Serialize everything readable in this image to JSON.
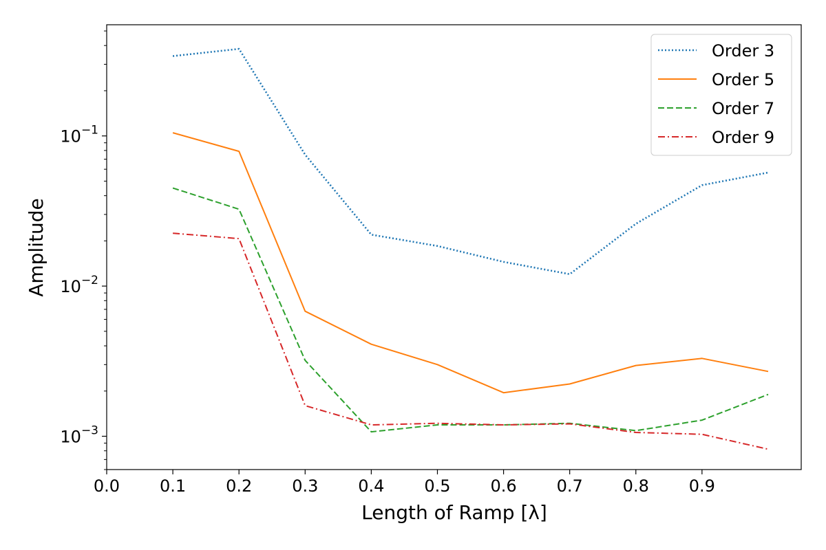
{
  "chart_data": {
    "type": "line",
    "title": "",
    "xlabel": "Length of Ramp [λ]",
    "ylabel": "Amplitude",
    "xlim": [
      0.0,
      1.05
    ],
    "ylim": [
      0.0006,
      0.55
    ],
    "yscale": "log",
    "grid": false,
    "legend_position": "top-right",
    "x_ticks": [
      "0.0",
      "0.1",
      "0.2",
      "0.3",
      "0.4",
      "0.5",
      "0.6",
      "0.7",
      "0.8",
      "0.9"
    ],
    "y_ticks": [
      {
        "value": 0.1,
        "base": "10",
        "exp": "−1"
      },
      {
        "value": 0.01,
        "base": "10",
        "exp": "−2"
      },
      {
        "value": 0.001,
        "base": "10",
        "exp": "−3"
      }
    ],
    "x": [
      0.1,
      0.2,
      0.3,
      0.4,
      0.5,
      0.6,
      0.7,
      0.8,
      0.9,
      1.0
    ],
    "series": [
      {
        "name": "Order 3",
        "color": "#1f77b4",
        "style": "dotted",
        "values": [
          0.34,
          0.38,
          0.075,
          0.022,
          0.0185,
          0.0145,
          0.012,
          0.026,
          0.047,
          0.057
        ]
      },
      {
        "name": "Order 5",
        "color": "#ff7f0e",
        "style": "solid",
        "values": [
          0.105,
          0.079,
          0.0068,
          0.0041,
          0.003,
          0.00195,
          0.00223,
          0.00296,
          0.0033,
          0.0027
        ]
      },
      {
        "name": "Order 7",
        "color": "#2ca02c",
        "style": "dashed",
        "values": [
          0.045,
          0.0325,
          0.0032,
          0.00107,
          0.00119,
          0.00119,
          0.00122,
          0.00109,
          0.00128,
          0.0019
        ]
      },
      {
        "name": "Order 9",
        "color": "#d62728",
        "style": "dashdot",
        "values": [
          0.0225,
          0.0207,
          0.0016,
          0.00119,
          0.00122,
          0.00119,
          0.00121,
          0.00106,
          0.00103,
          0.00082
        ]
      }
    ]
  }
}
